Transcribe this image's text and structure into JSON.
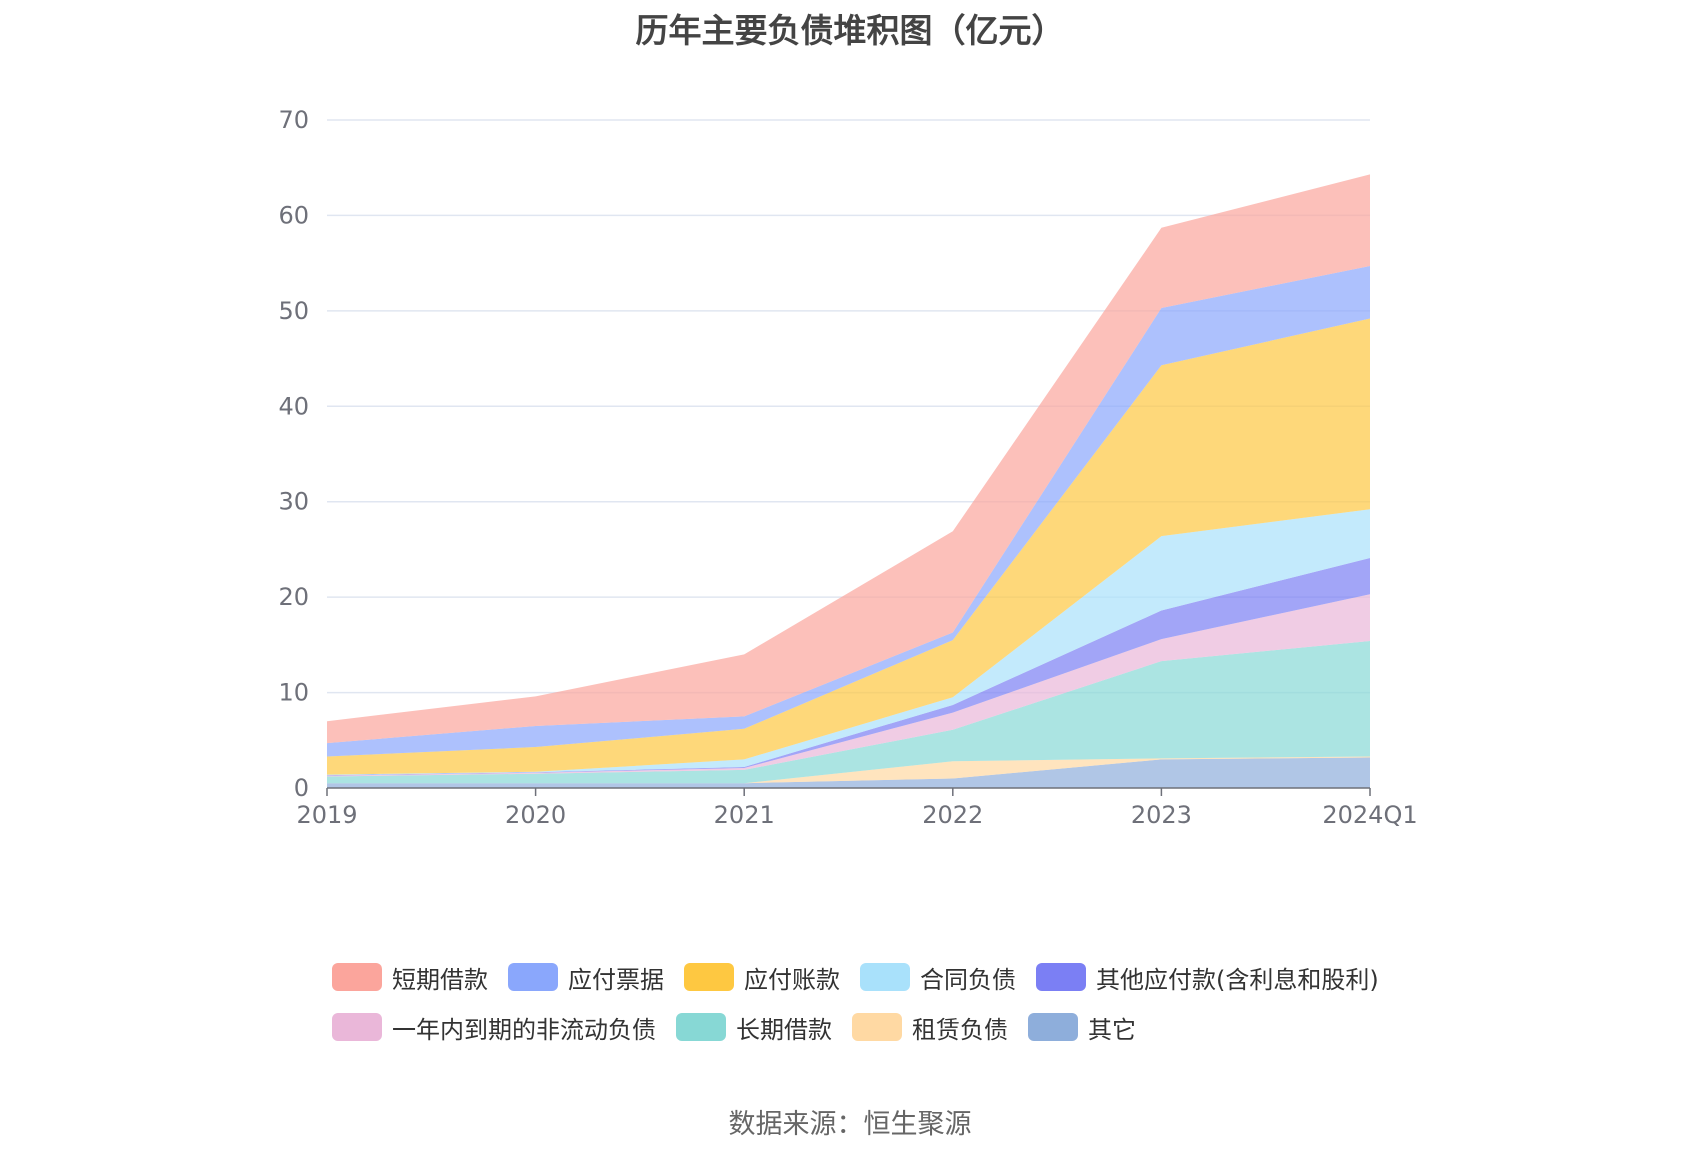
{
  "chart_data": {
    "type": "area",
    "stacked": true,
    "title": "历年主要负债堆积图（亿元）",
    "xlabel": "",
    "ylabel": "",
    "categories": [
      "2019",
      "2020",
      "2021",
      "2022",
      "2023",
      "2024Q1"
    ],
    "ylim": [
      0,
      70
    ],
    "yticks": [
      0,
      10,
      20,
      30,
      40,
      50,
      60,
      70
    ],
    "grid": true,
    "legend_position": "bottom",
    "series": [
      {
        "name": "其它",
        "color": "#8eaedb",
        "values": [
          0.5,
          0.5,
          0.5,
          1.0,
          3.0,
          3.2
        ]
      },
      {
        "name": "租赁负债",
        "color": "#ffd9a3",
        "values": [
          0,
          0,
          0,
          1.8,
          0.1,
          0.1
        ]
      },
      {
        "name": "长期借款",
        "color": "#87d8d5",
        "values": [
          0.7,
          1.0,
          1.4,
          3.3,
          10.2,
          12.1
        ]
      },
      {
        "name": "一年内到期的非流动负债",
        "color": "#eab7d9",
        "values": [
          0.1,
          0.1,
          0.2,
          1.8,
          2.3,
          4.9
        ]
      },
      {
        "name": "其他应付款(含利息和股利)",
        "color": "#7b7ff4",
        "values": [
          0.05,
          0.05,
          0.1,
          0.8,
          3.0,
          3.8
        ]
      },
      {
        "name": "合同负债",
        "color": "#a9e1fb",
        "values": [
          0.05,
          0.05,
          0.8,
          0.8,
          7.8,
          5.1
        ]
      },
      {
        "name": "应付账款",
        "color": "#fec841",
        "values": [
          1.9,
          2.6,
          3.2,
          6.0,
          17.9,
          20.0
        ]
      },
      {
        "name": "应付票据",
        "color": "#8aa7fc",
        "values": [
          1.4,
          2.2,
          1.3,
          0.8,
          6.0,
          5.5
        ]
      },
      {
        "name": "短期借款",
        "color": "#fba59c",
        "values": [
          2.3,
          3.1,
          6.5,
          10.6,
          8.4,
          9.6
        ]
      }
    ],
    "legend_order": [
      "短期借款",
      "应付票据",
      "应付账款",
      "合同负债",
      "其他应付款(含利息和股利)",
      "一年内到期的非流动负债",
      "长期借款",
      "租赁负债",
      "其它"
    ]
  },
  "source": "数据来源：恒生聚源"
}
